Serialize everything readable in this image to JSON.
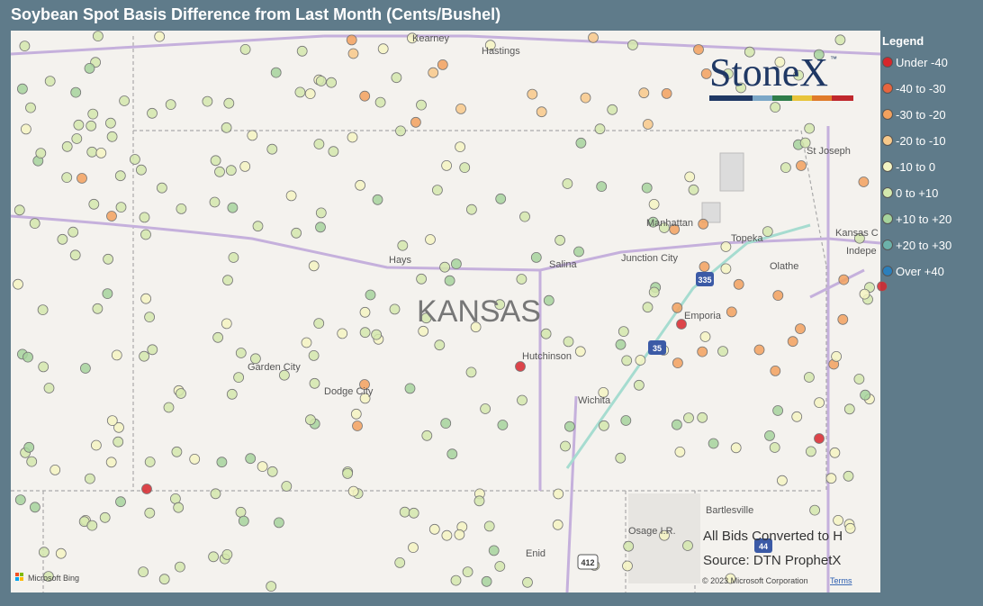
{
  "header": {
    "title": "Soybean Spot Basis Difference from Last Month (Cents/Bushel)"
  },
  "legend": {
    "title": "Legend",
    "items": [
      {
        "label": "Under -40",
        "color": "#d7262b"
      },
      {
        "label": "-40 to -30",
        "color": "#e8653e"
      },
      {
        "label": "-30 to -20",
        "color": "#f2a15e"
      },
      {
        "label": "-20 to -10",
        "color": "#f8c98a"
      },
      {
        "label": "-10 to 0",
        "color": "#f4f4c2"
      },
      {
        "label": "0 to +10",
        "color": "#d3e8ad"
      },
      {
        "label": "+10 to +20",
        "color": "#a6d49c"
      },
      {
        "label": "+20 to +30",
        "color": "#6cb2aa"
      },
      {
        "label": "Over +40",
        "color": "#2b7fbb"
      }
    ]
  },
  "map": {
    "labels": {
      "kearney": "Kearney",
      "hastings": "Hastings",
      "st_joseph": "St Joseph",
      "manhattan": "Manhattan",
      "topeka": "Topeka",
      "kansas_city": "Kansas C",
      "independence": "Indepe",
      "junction_city": "Junction City",
      "salina": "Salina",
      "hays": "Hays",
      "olathe": "Olathe",
      "emporia": "Emporia",
      "state": "KANSAS",
      "hutchinson": "Hutchinson",
      "garden_city": "Garden City",
      "dodge_city": "Dodge City",
      "wichita": "Wichita",
      "bartlesville": "Bartlesville",
      "osage": "Osage I.R.",
      "enid": "Enid"
    },
    "shields": {
      "i335": "335",
      "i35": "35",
      "i44": "44",
      "us412": "412"
    }
  },
  "logo": "StoneX",
  "logo_tm": "™",
  "notes": {
    "converted": "All Bids Converted to H",
    "source": "Source: DTN ProphetX"
  },
  "footer": {
    "bing": "Microsoft Bing",
    "copyright": "© 2023 Microsoft Corporation",
    "terms": "Terms"
  }
}
